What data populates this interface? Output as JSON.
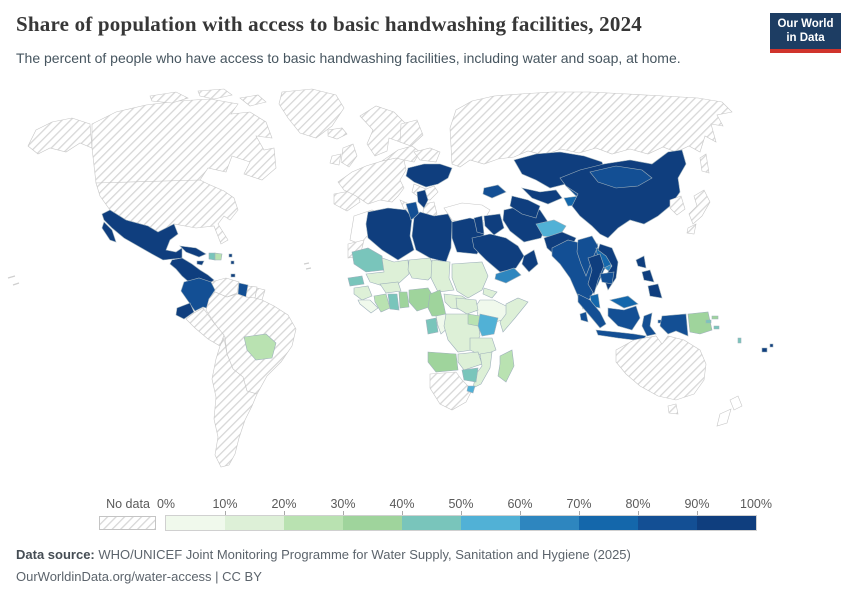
{
  "header": {
    "title": "Share of population with access to basic handwashing facilities, 2024",
    "subtitle": "The percent of people who have access to basic handwashing facilities, including water and soap, at home.",
    "logo_line1": "Our World",
    "logo_line2": "in Data",
    "logo_bg": "#1d3d63",
    "logo_red": "#d0342c"
  },
  "legend": {
    "no_data_label": "No data",
    "tick_labels": [
      "0%",
      "10%",
      "20%",
      "30%",
      "40%",
      "50%",
      "60%",
      "70%",
      "80%",
      "90%",
      "100%"
    ],
    "bin_colors": [
      "#f0f9ec",
      "#ddf0d7",
      "#b9e2b1",
      "#9fd49c",
      "#79c5bb",
      "#51b1d6",
      "#2e86bf",
      "#1467ab",
      "#134f94",
      "#0f3e7e"
    ]
  },
  "footer": {
    "source_label": "Data source:",
    "source_text": " WHO/UNICEF Joint Monitoring Programme for Water Supply, Sanitation and Hygiene (2025)",
    "note_text": "OurWorldinData.org/water-access | CC BY"
  },
  "chart_data": {
    "type": "choropleth",
    "title": "Share of population with access to basic handwashing facilities, 2024",
    "unit": "% of population",
    "year": 2024,
    "legend_bins": [
      {
        "label": "0-10%",
        "color": "#f0f9ec"
      },
      {
        "label": "10-20%",
        "color": "#ddf0d7"
      },
      {
        "label": "20-30%",
        "color": "#b9e2b1"
      },
      {
        "label": "30-40%",
        "color": "#9fd49c"
      },
      {
        "label": "40-50%",
        "color": "#79c5bb"
      },
      {
        "label": "50-60%",
        "color": "#51b1d6"
      },
      {
        "label": "60-70%",
        "color": "#2e86bf"
      },
      {
        "label": "70-80%",
        "color": "#1467ab"
      },
      {
        "label": "80-90%",
        "color": "#134f94"
      },
      {
        "label": "90-100%",
        "color": "#0f3e7e"
      }
    ],
    "regions": {
      "united-states": {
        "name": "United States",
        "value": "No data",
        "color": "no-data"
      },
      "canada": {
        "name": "Canada",
        "value": "No data",
        "color": "no-data"
      },
      "greenland": {
        "name": "Greenland",
        "value": "No data",
        "color": "no-data"
      },
      "iceland": {
        "name": "Iceland",
        "value": "No data",
        "color": "no-data"
      },
      "mexico": {
        "name": "Mexico",
        "value": "90-100%",
        "color": "#0f3e7e"
      },
      "central-america": {
        "name": "Central America",
        "value": "90-100%",
        "color": "#0f3e7e"
      },
      "cuba": {
        "name": "Cuba",
        "value": "90-100%",
        "color": "#0f3e7e"
      },
      "jamaica": {
        "name": "Jamaica",
        "value": "90-100%",
        "color": "#0f3e7e"
      },
      "haiti": {
        "name": "Haiti",
        "value": "40-50%",
        "color": "#79c5bb"
      },
      "dominican-republic": {
        "name": "Dominican Republic",
        "value": "20-30%",
        "color": "#b9e2b1"
      },
      "lesser-antilles": {
        "name": "Lesser Antilles",
        "value": "90-100%",
        "color": "#0f3e7e"
      },
      "trinidad-and-tobago": {
        "name": "Trinidad and Tobago",
        "value": "90-100%",
        "color": "#0f3e7e"
      },
      "colombia": {
        "name": "Colombia",
        "value": "80-90%",
        "color": "#134f94"
      },
      "venezuela": {
        "name": "Venezuela",
        "value": "No data",
        "color": "no-data"
      },
      "guyana": {
        "name": "Guyana",
        "value": "80-90%",
        "color": "#134f94"
      },
      "suriname": {
        "name": "Suriname",
        "value": "No data",
        "color": "no-data"
      },
      "french-guiana": {
        "name": "French Guiana",
        "value": "No data",
        "color": "no-data"
      },
      "ecuador": {
        "name": "Ecuador",
        "value": "90-100%",
        "color": "#0f3e7e"
      },
      "peru": {
        "name": "Peru",
        "value": "No data",
        "color": "no-data"
      },
      "brazil": {
        "name": "Brazil",
        "value": "No data",
        "color": "no-data"
      },
      "bolivia": {
        "name": "Bolivia",
        "value": "20-30%",
        "color": "#b9e2b1"
      },
      "southern-south-america": {
        "name": "Southern South America",
        "value": "No data",
        "color": "no-data"
      },
      "europe": {
        "name": "Europe (most countries)",
        "value": "No data",
        "color": "no-data"
      },
      "ukraine": {
        "name": "Ukraine",
        "value": "90-100%",
        "color": "#0f3e7e"
      },
      "serbia-and-albania": {
        "name": "Serbia and Albania",
        "value": "90-100%",
        "color": "#0f3e7e"
      },
      "russia": {
        "name": "Russia",
        "value": "No data",
        "color": "no-data"
      },
      "turkey": {
        "name": "Turkey",
        "value": "No data",
        "color": "white"
      },
      "morocco": {
        "name": "Morocco",
        "value": "No data",
        "color": "white"
      },
      "western-sahara": {
        "name": "Western Sahara",
        "value": "No data",
        "color": "no-data"
      },
      "algeria": {
        "name": "Algeria",
        "value": "90-100%",
        "color": "#0f3e7e"
      },
      "tunisia": {
        "name": "Tunisia",
        "value": "80-90%",
        "color": "#134f94"
      },
      "libya": {
        "name": "Libya",
        "value": "90-100%",
        "color": "#0f3e7e"
      },
      "egypt": {
        "name": "Egypt",
        "value": "90-100%",
        "color": "#0f3e7e"
      },
      "mauritania": {
        "name": "Mauritania",
        "value": "40-50%",
        "color": "#79c5bb"
      },
      "mali": {
        "name": "Mali",
        "value": "10-20%",
        "color": "#ddf0d7"
      },
      "niger": {
        "name": "Niger",
        "value": "10-20%",
        "color": "#ddf0d7"
      },
      "chad": {
        "name": "Chad",
        "value": "10-20%",
        "color": "#ddf0d7"
      },
      "sudan": {
        "name": "Sudan",
        "value": "10-20%",
        "color": "#ddf0d7"
      },
      "eritrea": {
        "name": "Eritrea",
        "value": "10-20%",
        "color": "#ddf0d7"
      },
      "ethiopia": {
        "name": "Ethiopia",
        "value": "0-10%",
        "color": "#f0f9ec"
      },
      "somalia": {
        "name": "Somalia",
        "value": "10-20%",
        "color": "#ddf0d7"
      },
      "senegal": {
        "name": "Senegal",
        "value": "40-50%",
        "color": "#79c5bb"
      },
      "guinea": {
        "name": "Guinea",
        "value": "10-20%",
        "color": "#ddf0d7"
      },
      "sierra-leone-liberia": {
        "name": "Sierra Leone and Liberia",
        "value": "0-10%",
        "color": "#f0f9ec"
      },
      "ivory-coast": {
        "name": "Cote d'Ivoire",
        "value": "20-30%",
        "color": "#b9e2b1"
      },
      "ghana": {
        "name": "Ghana",
        "value": "40-50%",
        "color": "#79c5bb"
      },
      "togo-benin": {
        "name": "Togo and Benin",
        "value": "30-40%",
        "color": "#9fd49c"
      },
      "burkina-faso": {
        "name": "Burkina Faso",
        "value": "10-20%",
        "color": "#ddf0d7"
      },
      "nigeria": {
        "name": "Nigeria",
        "value": "30-40%",
        "color": "#9fd49c"
      },
      "cameroon": {
        "name": "Cameroon",
        "value": "30-40%",
        "color": "#9fd49c"
      },
      "central-african-republic": {
        "name": "Central African Republic",
        "value": "10-20%",
        "color": "#ddf0d7"
      },
      "south-sudan": {
        "name": "South Sudan",
        "value": "10-20%",
        "color": "#ddf0d7"
      },
      "gabon": {
        "name": "Gabon",
        "value": "40-50%",
        "color": "#79c5bb"
      },
      "congo": {
        "name": "Congo",
        "value": "0-10%",
        "color": "#f0f9ec"
      },
      "drc": {
        "name": "Democratic Republic of Congo",
        "value": "10-20%",
        "color": "#ddf0d7"
      },
      "uganda": {
        "name": "Uganda",
        "value": "20-30%",
        "color": "#b9e2b1"
      },
      "kenya": {
        "name": "Kenya",
        "value": "50-60%",
        "color": "#51b1d6"
      },
      "tanzania": {
        "name": "Tanzania",
        "value": "10-20%",
        "color": "#ddf0d7"
      },
      "angola": {
        "name": "Angola",
        "value": "30-40%",
        "color": "#9fd49c"
      },
      "zambia": {
        "name": "Zambia",
        "value": "10-20%",
        "color": "#ddf0d7"
      },
      "mozambique": {
        "name": "Mozambique",
        "value": "10-20%",
        "color": "#ddf0d7"
      },
      "zimbabwe": {
        "name": "Zimbabwe",
        "value": "40-50%",
        "color": "#79c5bb"
      },
      "madagascar": {
        "name": "Madagascar",
        "value": "20-30%",
        "color": "#b9e2b1"
      },
      "southern-africa": {
        "name": "South Africa, Namibia and Botswana",
        "value": "No data",
        "color": "no-data"
      },
      "eswatini": {
        "name": "Eswatini",
        "value": "50-60%",
        "color": "#51b1d6"
      },
      "levant": {
        "name": "Jordan and Israel",
        "value": "90-100%",
        "color": "#0f3e7e"
      },
      "iraq": {
        "name": "Iraq",
        "value": "90-100%",
        "color": "#0f3e7e"
      },
      "iran": {
        "name": "Iran",
        "value": "90-100%",
        "color": "#0f3e7e"
      },
      "saudi-arabia": {
        "name": "Saudi Arabia",
        "value": "90-100%",
        "color": "#0f3e7e"
      },
      "yemen": {
        "name": "Yemen",
        "value": "60-70%",
        "color": "#2e86bf"
      },
      "oman": {
        "name": "Oman",
        "value": "90-100%",
        "color": "#0f3e7e"
      },
      "caucasus": {
        "name": "Caucasus countries",
        "value": "80-90%",
        "color": "#134f94"
      },
      "kazakhstan": {
        "name": "Kazakhstan",
        "value": "90-100%",
        "color": "#0f3e7e"
      },
      "uzbekistan": {
        "name": "Uzbekistan",
        "value": "90-100%",
        "color": "#0f3e7e"
      },
      "turkmenistan": {
        "name": "Turkmenistan",
        "value": "90-100%",
        "color": "#0f3e7e"
      },
      "kyrgyzstan": {
        "name": "Kyrgyzstan",
        "value": "80-90%",
        "color": "#134f94"
      },
      "tajikistan": {
        "name": "Tajikistan",
        "value": "70-80%",
        "color": "#1467ab"
      },
      "afghanistan": {
        "name": "Afghanistan",
        "value": "50-60%",
        "color": "#51b1d6"
      },
      "pakistan": {
        "name": "Pakistan",
        "value": "90-100%",
        "color": "#0f3e7e"
      },
      "india": {
        "name": "India",
        "value": "80-90%",
        "color": "#134f94"
      },
      "nepal": {
        "name": "Nepal",
        "value": "70-80%",
        "color": "#1467ab"
      },
      "bangladesh": {
        "name": "Bangladesh",
        "value": "60-70%",
        "color": "#2e86bf"
      },
      "sri-lanka": {
        "name": "Sri Lanka",
        "value": "80-90%",
        "color": "#134f94"
      },
      "china": {
        "name": "China",
        "value": "90-100%",
        "color": "#0f3e7e"
      },
      "mongolia": {
        "name": "Mongolia",
        "value": "80-90%",
        "color": "#134f94"
      },
      "korea": {
        "name": "North and South Korea",
        "value": "No data",
        "color": "no-data"
      },
      "japan": {
        "name": "Japan",
        "value": "No data",
        "color": "no-data"
      },
      "myanmar": {
        "name": "Myanmar",
        "value": "80-90%",
        "color": "#134f94"
      },
      "thailand": {
        "name": "Thailand",
        "value": "90-100%",
        "color": "#0f3e7e"
      },
      "laos": {
        "name": "Laos",
        "value": "70-80%",
        "color": "#1467ab"
      },
      "vietnam": {
        "name": "Vietnam",
        "value": "90-100%",
        "color": "#0f3e7e"
      },
      "cambodia": {
        "name": "Cambodia",
        "value": "80-90%",
        "color": "#134f94"
      },
      "malaysia": {
        "name": "Malaysia",
        "value": "70-80%",
        "color": "#1467ab"
      },
      "indonesia": {
        "name": "Indonesia",
        "value": "80-90%",
        "color": "#134f94"
      },
      "philippines": {
        "name": "Philippines",
        "value": "90-100%",
        "color": "#0f3e7e"
      },
      "papua-new-guinea": {
        "name": "Papua New Guinea",
        "value": "30-40%",
        "color": "#9fd49c"
      },
      "solomon-islands": {
        "name": "Solomon Islands",
        "value": "40-50%",
        "color": "#79c5bb"
      },
      "vanuatu": {
        "name": "Vanuatu",
        "value": "40-50%",
        "color": "#79c5bb"
      },
      "fiji": {
        "name": "Fiji",
        "value": "90-100%",
        "color": "#0f3e7e"
      },
      "australia": {
        "name": "Australia",
        "value": "No data",
        "color": "no-data"
      },
      "new-zealand": {
        "name": "New Zealand",
        "value": "No data",
        "color": "white"
      }
    }
  }
}
